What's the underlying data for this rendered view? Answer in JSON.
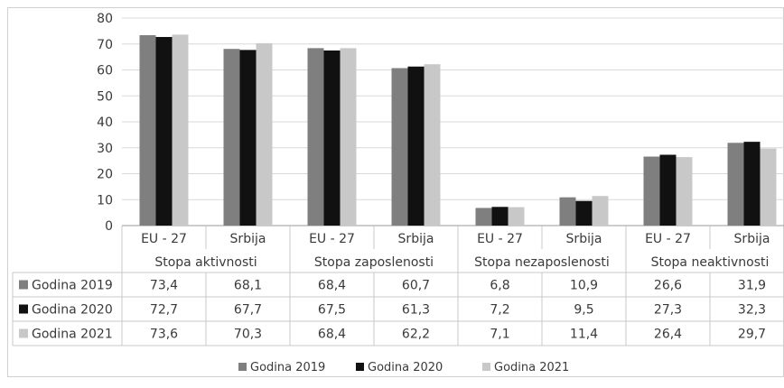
{
  "chart_data": {
    "type": "bar",
    "ylim": [
      0,
      80
    ],
    "yticks": [
      0,
      10,
      20,
      30,
      40,
      50,
      60,
      70,
      80
    ],
    "grid": true,
    "legend_position": "bottom",
    "groups": [
      "Stopa aktivnosti",
      "Stopa zaposlenosti",
      "Stopa nezaposlenosti",
      "Stopa neaktivnosti"
    ],
    "categories": [
      "EU - 27",
      "Srbija",
      "EU - 27",
      "Srbija",
      "EU - 27",
      "Srbija",
      "EU - 27",
      "Srbija"
    ],
    "series": [
      {
        "name": "Godina 2019",
        "color": "#7f7f7f",
        "values": [
          73.4,
          68.1,
          68.4,
          60.7,
          6.8,
          10.9,
          26.6,
          31.9
        ],
        "labels": [
          "73,4",
          "68,1",
          "68,4",
          "60,7",
          "6,8",
          "10,9",
          "26,6",
          "31,9"
        ]
      },
      {
        "name": "Godina 2020",
        "color": "#111111",
        "values": [
          72.7,
          67.7,
          67.5,
          61.3,
          7.2,
          9.5,
          27.3,
          32.3
        ],
        "labels": [
          "72,7",
          "67,7",
          "67,5",
          "61,3",
          "7,2",
          "9,5",
          "27,3",
          "32,3"
        ]
      },
      {
        "name": "Godina 2021",
        "color": "#c8c8c8",
        "values": [
          73.6,
          70.3,
          68.4,
          62.2,
          7.1,
          11.4,
          26.4,
          29.7
        ],
        "labels": [
          "73,6",
          "70,3",
          "68,4",
          "62,2",
          "7,1",
          "11,4",
          "26,4",
          "29,7"
        ]
      }
    ]
  }
}
